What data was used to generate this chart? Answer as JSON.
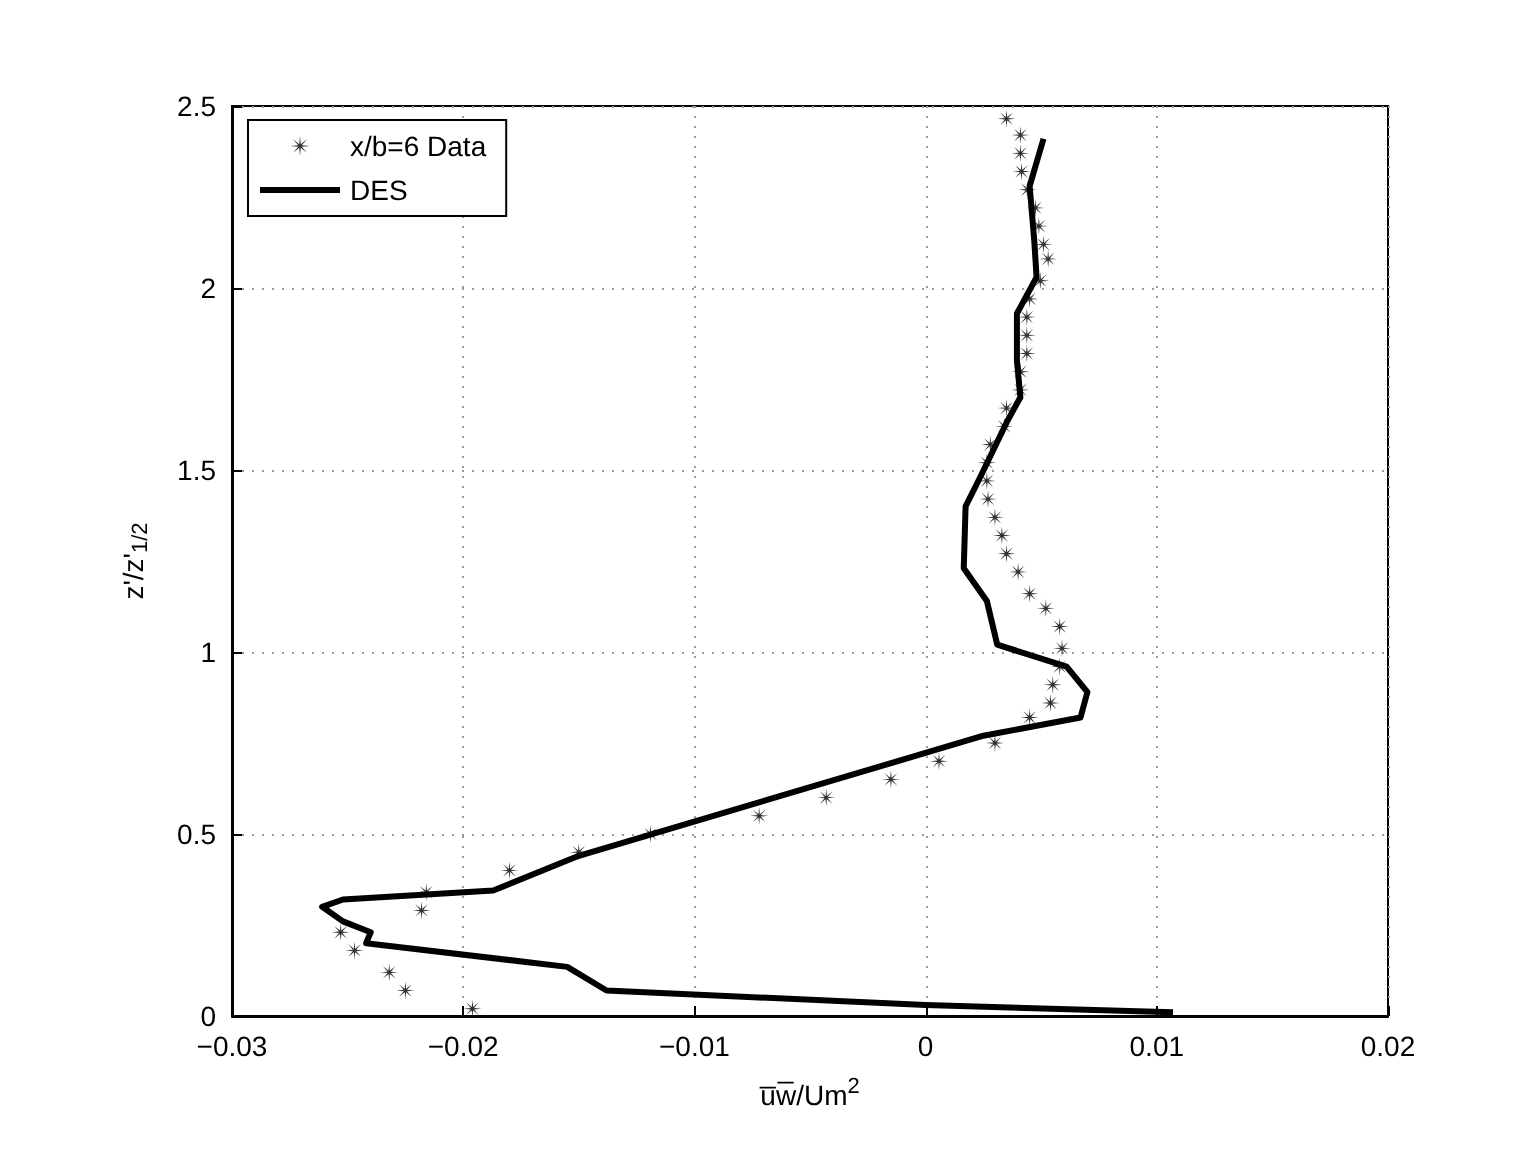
{
  "chart_data": {
    "type": "scatter",
    "xlabel": "u̅w̅/Um$^{2}$",
    "ylabel": "z'/z'$_{1/2}$",
    "xlim": [
      -0.03,
      0.02
    ],
    "xticks": [
      -0.03,
      -0.02,
      -0.01,
      0,
      0.01,
      0.02
    ],
    "ylim": [
      0,
      2.5
    ],
    "yticks": [
      0,
      0.5,
      1,
      1.5,
      2,
      2.5
    ],
    "grid": true,
    "legend": "top left",
    "series": [
      {
        "name": "x/b=6 Data",
        "marker": "star",
        "color": "#000000",
        "x": [
          0.0035,
          0.0041,
          0.0041,
          0.00415,
          0.0044,
          0.00475,
          0.0049,
          0.0051,
          0.0053,
          0.00496,
          0.0045,
          0.00438,
          0.00438,
          0.00438,
          0.0041,
          0.0041,
          0.0035,
          0.0034,
          0.0028,
          0.00265,
          0.00265,
          0.0027,
          0.003,
          0.0033,
          0.0035,
          0.004,
          0.0045,
          0.0052,
          0.0058,
          0.0059,
          0.0058,
          0.0055,
          0.0054,
          0.0045,
          0.003,
          0.00058,
          -0.0015,
          -0.0043,
          -0.0072,
          -0.0119,
          -0.015,
          -0.018,
          -0.0216,
          -0.0218,
          -0.0253,
          -0.0247,
          -0.0232,
          -0.0225,
          -0.0196
        ],
        "values": [
          2.465,
          2.42,
          2.37,
          2.32,
          2.27,
          2.22,
          2.17,
          2.12,
          2.08,
          2.02,
          1.97,
          1.92,
          1.87,
          1.82,
          1.77,
          1.72,
          1.67,
          1.62,
          1.57,
          1.52,
          1.47,
          1.42,
          1.37,
          1.32,
          1.27,
          1.22,
          1.16,
          1.12,
          1.07,
          1.01,
          0.96,
          0.91,
          0.86,
          0.82,
          0.75,
          0.7,
          0.65,
          0.6,
          0.55,
          0.5,
          0.45,
          0.4,
          0.34,
          0.29,
          0.23,
          0.18,
          0.12,
          0.07,
          0.02
        ]
      },
      {
        "name": "DES",
        "type": "line",
        "marker": "none",
        "line_style": "solid",
        "color": "#000000",
        "x": [
          0.0107,
          0,
          -0.0138,
          -0.0155,
          -0.0242,
          -0.024,
          -0.0252,
          -0.0261,
          -0.0252,
          -0.0187,
          -0.015,
          0.0025,
          0.0067,
          0.007,
          0.0061,
          0.0031,
          0.00265,
          0.00165,
          0.00173,
          0.00236,
          0.0035,
          0.0041,
          0.00395,
          0.00395,
          0.0048,
          0.0047,
          0.0045,
          0.0051
        ],
        "values": [
          0.01,
          0.03,
          0.07,
          0.135,
          0.2,
          0.23,
          0.26,
          0.3,
          0.32,
          0.345,
          0.44,
          0.77,
          0.82,
          0.89,
          0.96,
          1.02,
          1.14,
          1.23,
          1.4,
          1.48,
          1.63,
          1.7,
          1.8,
          1.93,
          2.03,
          2.13,
          2.28,
          2.41
        ]
      }
    ]
  }
}
